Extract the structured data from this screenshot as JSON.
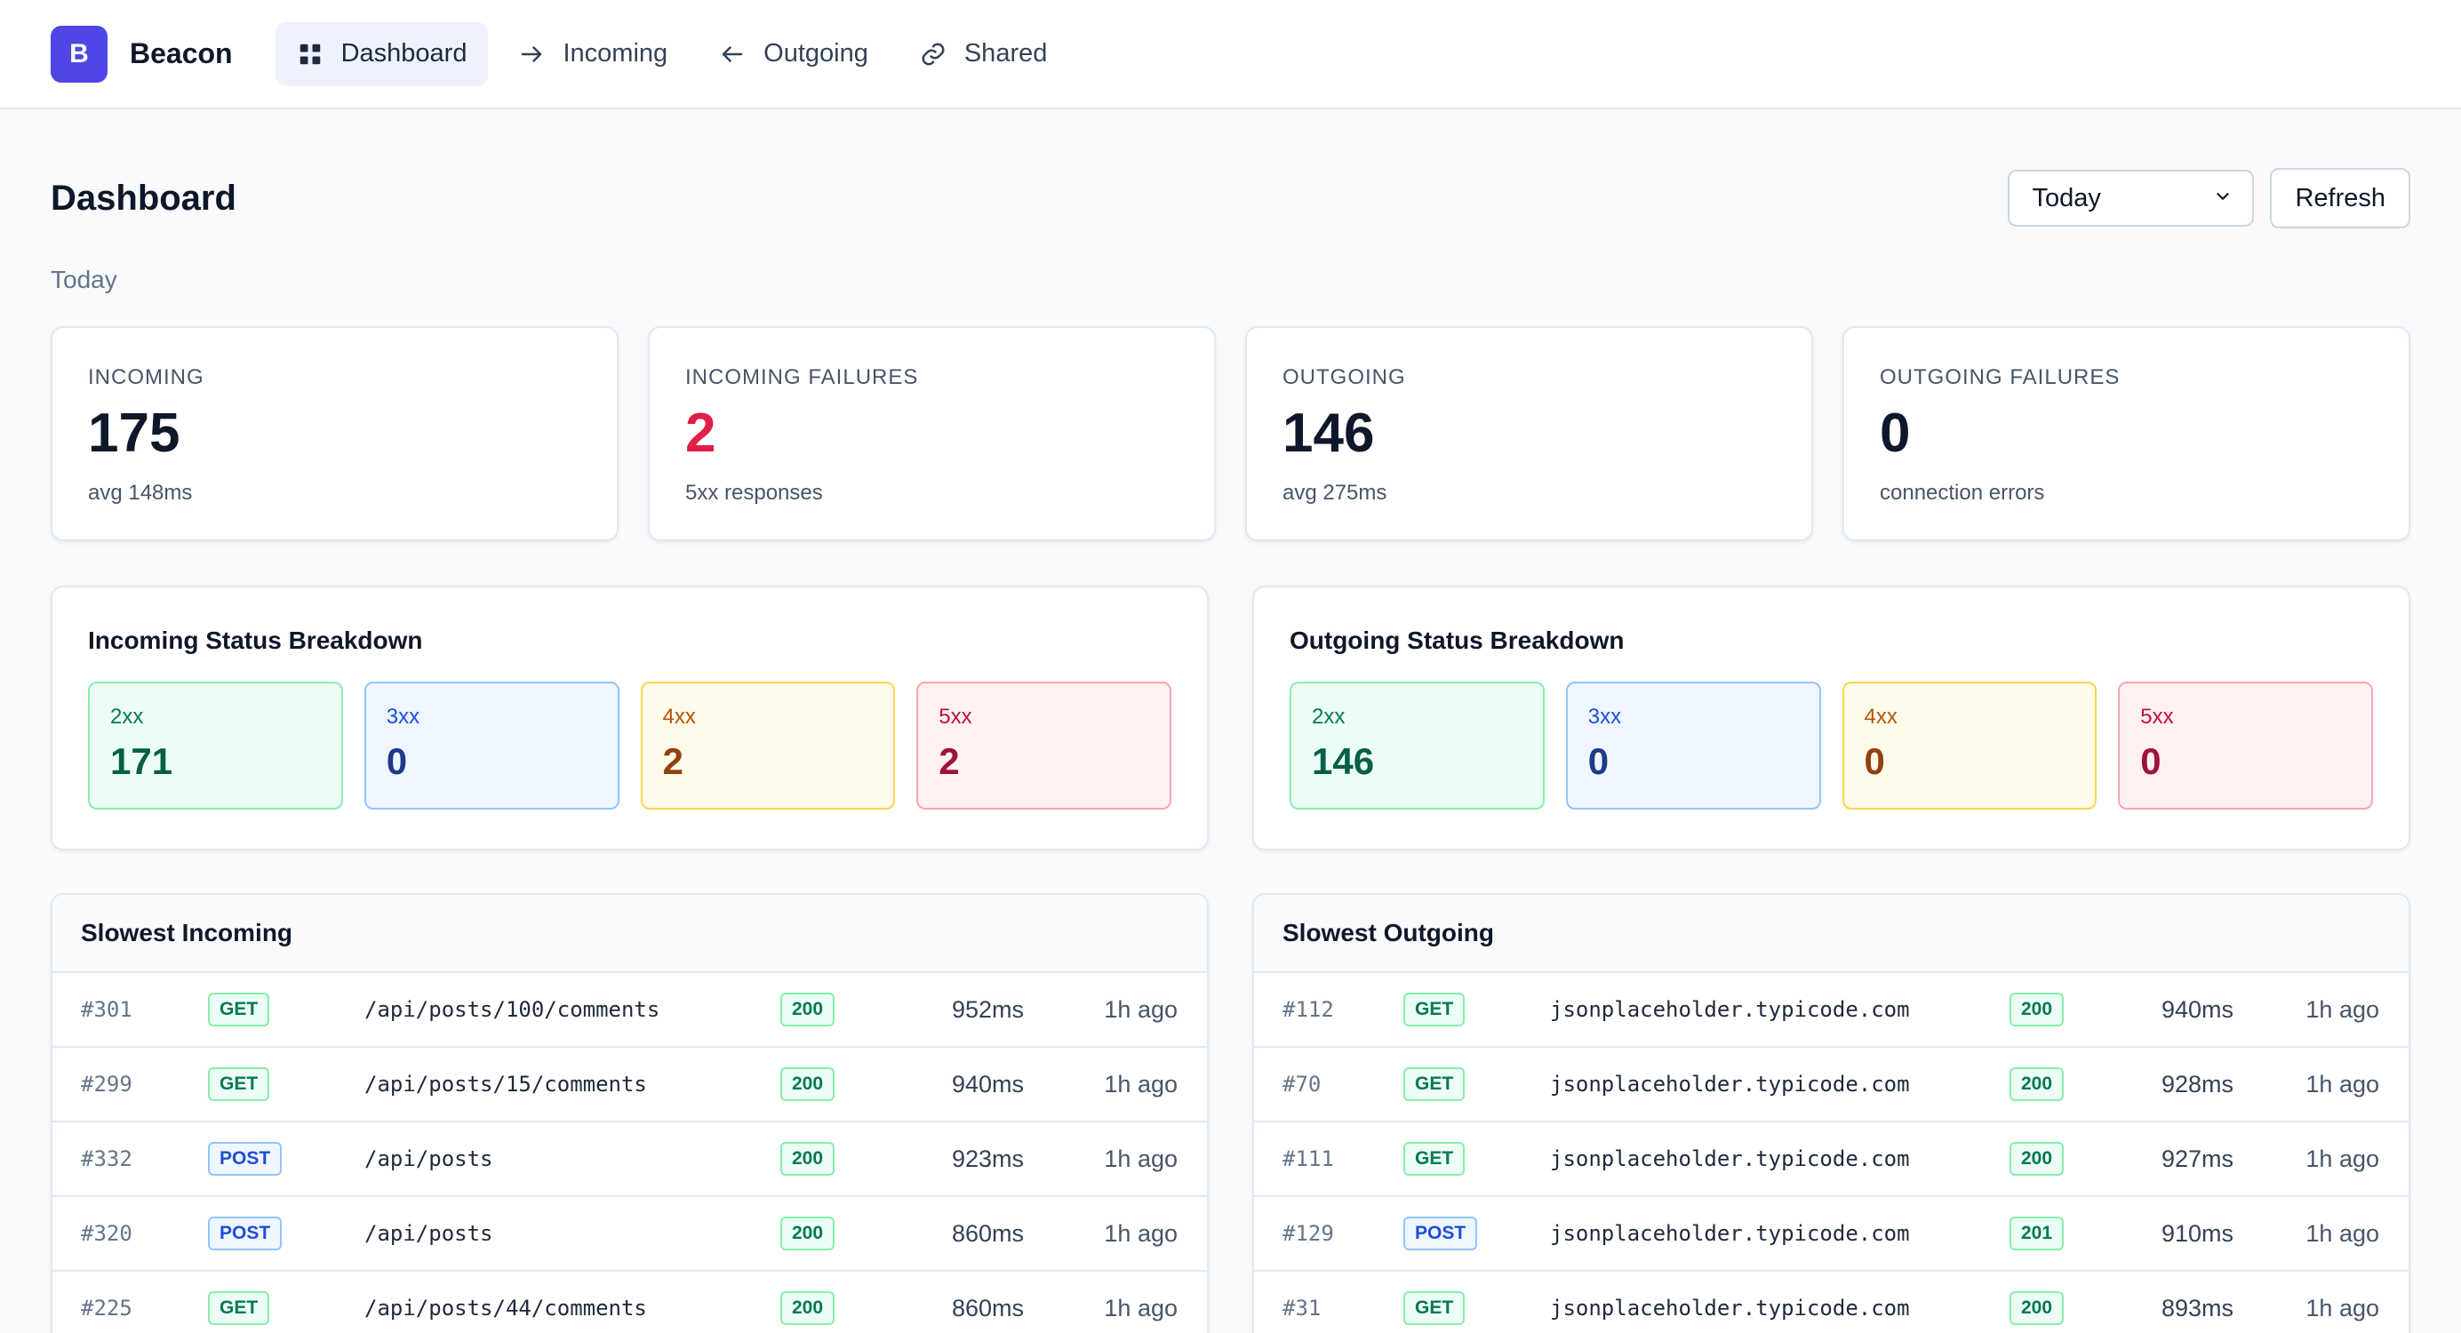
{
  "brand": {
    "logo_letter": "B",
    "name": "Beacon"
  },
  "nav": {
    "items": [
      {
        "label": "Dashboard",
        "icon": "grid-icon",
        "active": true
      },
      {
        "label": "Incoming",
        "icon": "arrow-right-icon",
        "active": false
      },
      {
        "label": "Outgoing",
        "icon": "arrow-left-icon",
        "active": false
      },
      {
        "label": "Shared",
        "icon": "link-icon",
        "active": false
      }
    ]
  },
  "header": {
    "title": "Dashboard",
    "period_select": "Today",
    "refresh_label": "Refresh",
    "period_label": "Today"
  },
  "stats": [
    {
      "label": "INCOMING",
      "value": "175",
      "sub": "avg 148ms"
    },
    {
      "label": "INCOMING FAILURES",
      "value": "2",
      "sub": "5xx responses"
    },
    {
      "label": "OUTGOING",
      "value": "146",
      "sub": "avg 275ms"
    },
    {
      "label": "OUTGOING FAILURES",
      "value": "0",
      "sub": "connection errors"
    }
  ],
  "incoming_breakdown": {
    "title": "Incoming Status Breakdown",
    "codes": [
      {
        "label": "2xx",
        "value": "171"
      },
      {
        "label": "3xx",
        "value": "0"
      },
      {
        "label": "4xx",
        "value": "2"
      },
      {
        "label": "5xx",
        "value": "2"
      }
    ]
  },
  "outgoing_breakdown": {
    "title": "Outgoing Status Breakdown",
    "codes": [
      {
        "label": "2xx",
        "value": "146"
      },
      {
        "label": "3xx",
        "value": "0"
      },
      {
        "label": "4xx",
        "value": "0"
      },
      {
        "label": "5xx",
        "value": "0"
      }
    ]
  },
  "slowest_incoming": {
    "title": "Slowest Incoming",
    "rows": [
      {
        "id": "#301",
        "method": "GET",
        "path": "/api/posts/100/comments",
        "status": "200",
        "duration": "952ms",
        "ago": "1h ago"
      },
      {
        "id": "#299",
        "method": "GET",
        "path": "/api/posts/15/comments",
        "status": "200",
        "duration": "940ms",
        "ago": "1h ago"
      },
      {
        "id": "#332",
        "method": "POST",
        "path": "/api/posts",
        "status": "200",
        "duration": "923ms",
        "ago": "1h ago"
      },
      {
        "id": "#320",
        "method": "POST",
        "path": "/api/posts",
        "status": "200",
        "duration": "860ms",
        "ago": "1h ago"
      },
      {
        "id": "#225",
        "method": "GET",
        "path": "/api/posts/44/comments",
        "status": "200",
        "duration": "860ms",
        "ago": "1h ago"
      }
    ]
  },
  "slowest_outgoing": {
    "title": "Slowest Outgoing",
    "rows": [
      {
        "id": "#112",
        "method": "GET",
        "path": "jsonplaceholder.typicode.com",
        "status": "200",
        "duration": "940ms",
        "ago": "1h ago"
      },
      {
        "id": "#70",
        "method": "GET",
        "path": "jsonplaceholder.typicode.com",
        "status": "200",
        "duration": "928ms",
        "ago": "1h ago"
      },
      {
        "id": "#111",
        "method": "GET",
        "path": "jsonplaceholder.typicode.com",
        "status": "200",
        "duration": "927ms",
        "ago": "1h ago"
      },
      {
        "id": "#129",
        "method": "POST",
        "path": "jsonplaceholder.typicode.com",
        "status": "201",
        "duration": "910ms",
        "ago": "1h ago"
      },
      {
        "id": "#31",
        "method": "GET",
        "path": "jsonplaceholder.typicode.com",
        "status": "200",
        "duration": "893ms",
        "ago": "1h ago"
      }
    ]
  },
  "colors": {
    "brand": "#4f46e5",
    "danger": "#e11d48",
    "success": "#047857",
    "info": "#1d4ed8",
    "warning": "#b45309"
  }
}
